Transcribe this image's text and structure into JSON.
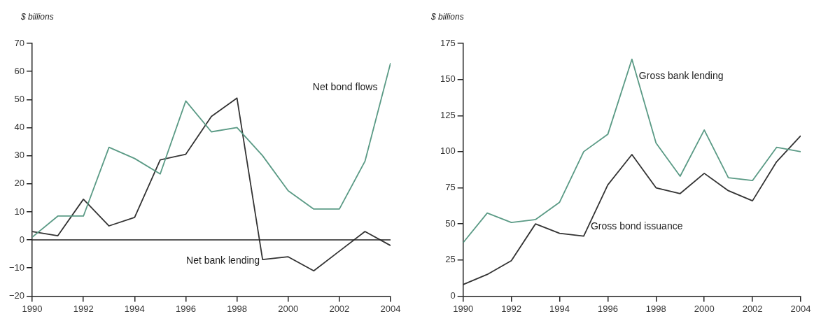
{
  "chart_data": [
    {
      "type": "line",
      "ylabel": "$ billions",
      "x": [
        1990,
        1991,
        1992,
        1993,
        1994,
        1995,
        1996,
        1997,
        1998,
        1999,
        2000,
        2001,
        2002,
        2003,
        2004
      ],
      "xlim": [
        1990,
        2004
      ],
      "xticks": [
        1990,
        1992,
        1994,
        1996,
        1998,
        2000,
        2002,
        2004
      ],
      "ylim": [
        -20,
        70
      ],
      "yticks": [
        -20,
        -10,
        0,
        10,
        20,
        30,
        40,
        50,
        60,
        70
      ],
      "grid": false,
      "legend": false,
      "ref_lines": [
        {
          "axis": "y",
          "value": 0,
          "color": "#222222"
        }
      ],
      "series": [
        {
          "name": "Net bond flows",
          "color": "#5a9a85",
          "values": [
            1,
            8.5,
            8.5,
            33,
            29,
            23.5,
            49.5,
            38.5,
            40,
            30,
            17.5,
            11,
            11,
            28,
            63
          ]
        },
        {
          "name": "Net bank lending",
          "color": "#333333",
          "values": [
            3,
            1.5,
            14.5,
            5,
            8,
            28.5,
            30.5,
            44,
            50.5,
            -7,
            -6,
            -11,
            -4,
            3,
            -2
          ]
        }
      ]
    },
    {
      "type": "line",
      "ylabel": "$ billions",
      "x": [
        1990,
        1991,
        1992,
        1993,
        1994,
        1995,
        1996,
        1997,
        1998,
        1999,
        2000,
        2001,
        2002,
        2003,
        2004
      ],
      "xlim": [
        1990,
        2004
      ],
      "xticks": [
        1990,
        1992,
        1994,
        1996,
        1998,
        2000,
        2002,
        2004
      ],
      "ylim": [
        0,
        175
      ],
      "yticks": [
        0,
        25,
        50,
        75,
        100,
        125,
        150,
        175
      ],
      "grid": false,
      "legend": false,
      "series": [
        {
          "name": "Gross bank lending",
          "color": "#5a9a85",
          "values": [
            37,
            57.5,
            51,
            53,
            65,
            100,
            112,
            164,
            106,
            83,
            115,
            82,
            80,
            103,
            100
          ]
        },
        {
          "name": "Gross bond issuance",
          "color": "#333333",
          "values": [
            8,
            15,
            24.5,
            50,
            43.5,
            41.5,
            77,
            98,
            75,
            71,
            85,
            73,
            66,
            93,
            111
          ]
        }
      ]
    }
  ]
}
